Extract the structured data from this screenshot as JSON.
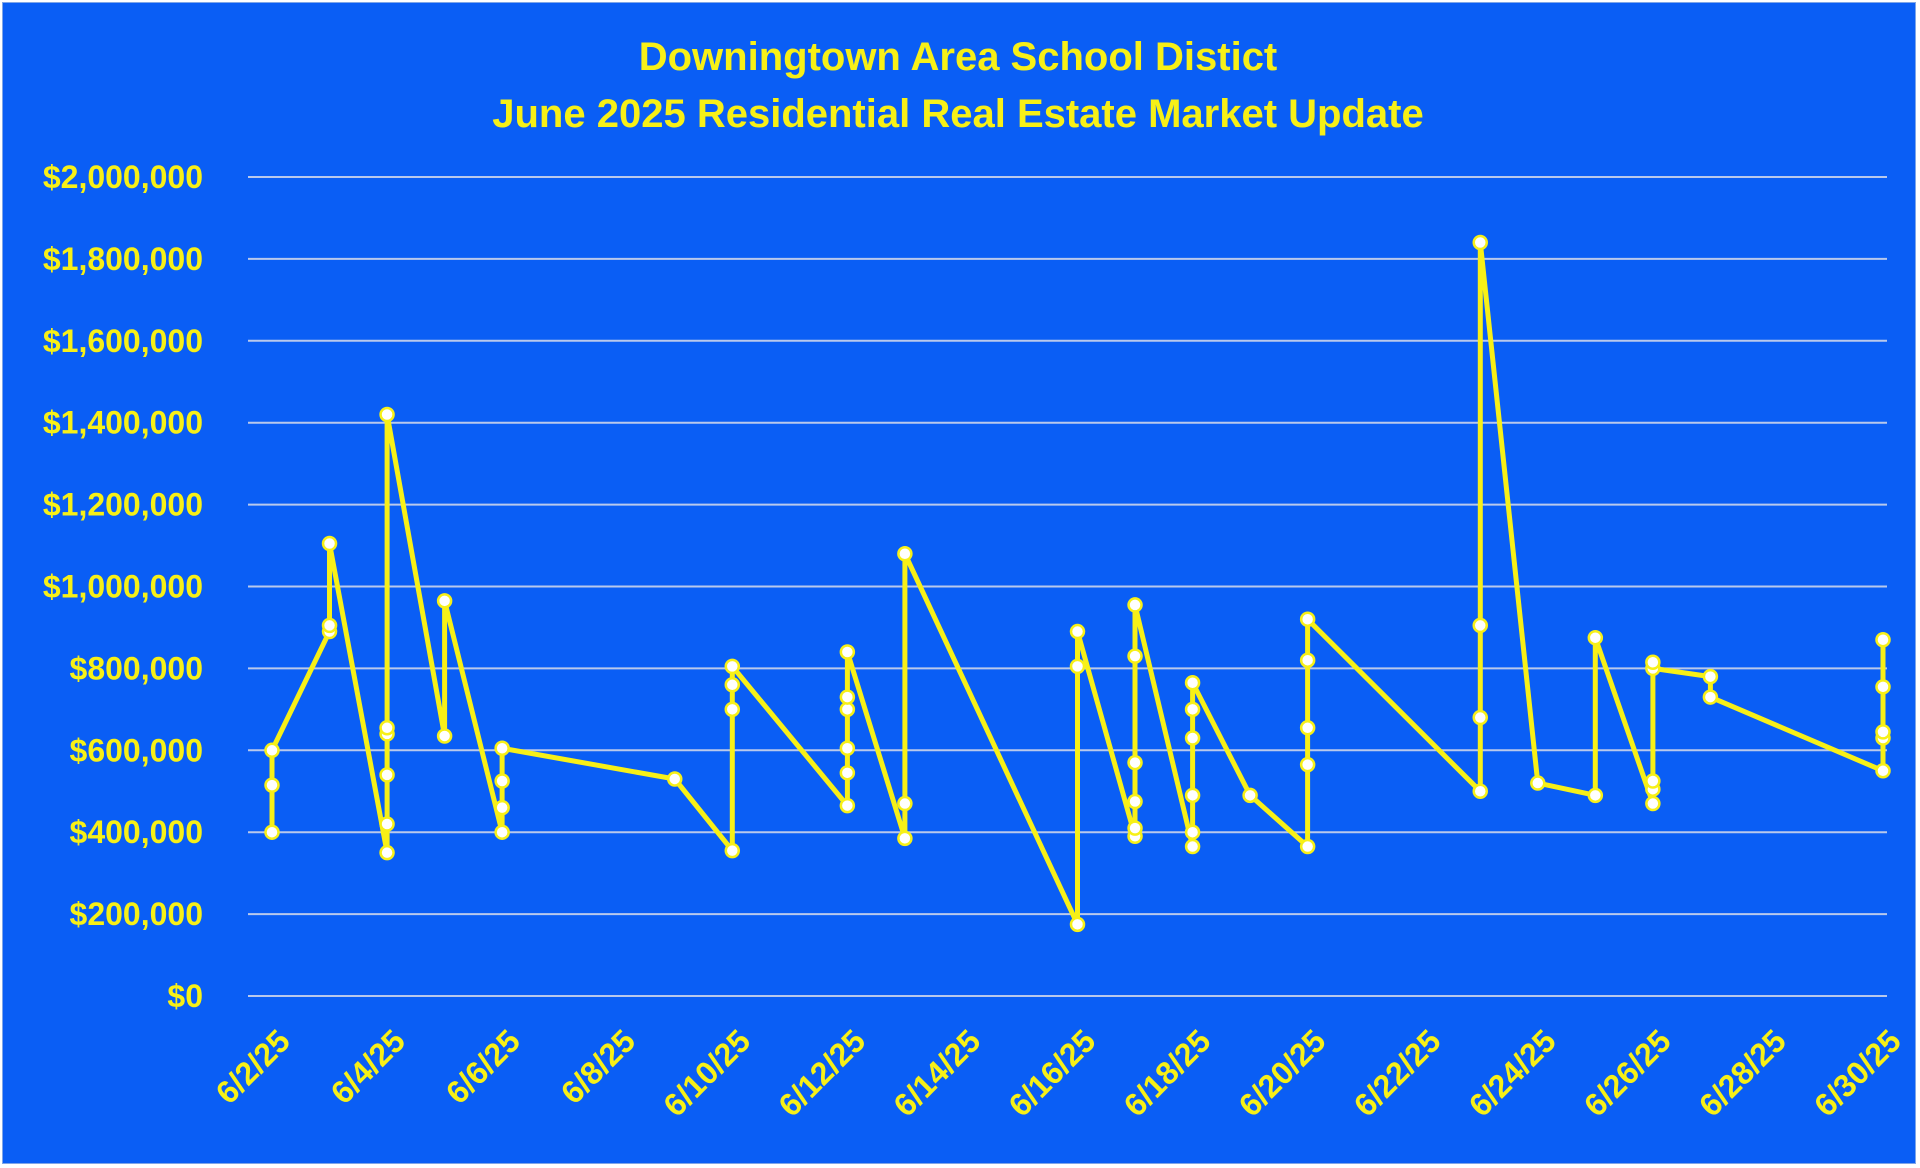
{
  "chart_data": {
    "type": "line",
    "title": "Downingtown Area School Distict",
    "subtitle": "June 2025 Residential Real Estate Market Update",
    "xlabel": "",
    "ylabel": "",
    "ylim": [
      0,
      2000000
    ],
    "yticks": [
      0,
      200000,
      400000,
      600000,
      800000,
      1000000,
      1200000,
      1400000,
      1600000,
      1800000,
      2000000
    ],
    "ytick_labels": [
      "$0",
      "$200,000",
      "$400,000",
      "$600,000",
      "$800,000",
      "$1,000,000",
      "$1,200,000",
      "$1,400,000",
      "$1,600,000",
      "$1,800,000",
      "$2,000,000"
    ],
    "xlim": [
      "2025-06-02",
      "2025-06-30"
    ],
    "xticks": [
      "2025-06-02",
      "2025-06-04",
      "2025-06-06",
      "2025-06-08",
      "2025-06-10",
      "2025-06-12",
      "2025-06-14",
      "2025-06-16",
      "2025-06-18",
      "2025-06-20",
      "2025-06-22",
      "2025-06-24",
      "2025-06-26",
      "2025-06-28",
      "2025-06-30"
    ],
    "xtick_labels": [
      "6/2/25",
      "6/4/25",
      "6/6/25",
      "6/8/25",
      "6/10/25",
      "6/12/25",
      "6/14/25",
      "6/16/25",
      "6/18/25",
      "6/20/25",
      "6/22/25",
      "6/24/25",
      "6/26/25",
      "6/28/25",
      "6/30/25"
    ],
    "grid": true,
    "legend": "none",
    "line_color": "#f7f017",
    "background_color": "#0a5ef5",
    "points": [
      {
        "x": "2025-06-02",
        "y": 400000
      },
      {
        "x": "2025-06-02",
        "y": 515000
      },
      {
        "x": "2025-06-02",
        "y": 600000
      },
      {
        "x": "2025-06-03",
        "y": 890000
      },
      {
        "x": "2025-06-03",
        "y": 905000
      },
      {
        "x": "2025-06-03",
        "y": 1105000
      },
      {
        "x": "2025-06-04",
        "y": 350000
      },
      {
        "x": "2025-06-04",
        "y": 420000
      },
      {
        "x": "2025-06-04",
        "y": 540000
      },
      {
        "x": "2025-06-04",
        "y": 640000
      },
      {
        "x": "2025-06-04",
        "y": 655000
      },
      {
        "x": "2025-06-04",
        "y": 1420000
      },
      {
        "x": "2025-06-05",
        "y": 635000
      },
      {
        "x": "2025-06-05",
        "y": 965000
      },
      {
        "x": "2025-06-06",
        "y": 400000
      },
      {
        "x": "2025-06-06",
        "y": 460000
      },
      {
        "x": "2025-06-06",
        "y": 525000
      },
      {
        "x": "2025-06-06",
        "y": 605000
      },
      {
        "x": "2025-06-09",
        "y": 530000
      },
      {
        "x": "2025-06-10",
        "y": 355000
      },
      {
        "x": "2025-06-10",
        "y": 700000
      },
      {
        "x": "2025-06-10",
        "y": 760000
      },
      {
        "x": "2025-06-10",
        "y": 805000
      },
      {
        "x": "2025-06-12",
        "y": 465000
      },
      {
        "x": "2025-06-12",
        "y": 545000
      },
      {
        "x": "2025-06-12",
        "y": 605000
      },
      {
        "x": "2025-06-12",
        "y": 700000
      },
      {
        "x": "2025-06-12",
        "y": 730000
      },
      {
        "x": "2025-06-12",
        "y": 840000
      },
      {
        "x": "2025-06-13",
        "y": 385000
      },
      {
        "x": "2025-06-13",
        "y": 470000
      },
      {
        "x": "2025-06-13",
        "y": 1080000
      },
      {
        "x": "2025-06-16",
        "y": 175000
      },
      {
        "x": "2025-06-16",
        "y": 805000
      },
      {
        "x": "2025-06-16",
        "y": 890000
      },
      {
        "x": "2025-06-17",
        "y": 390000
      },
      {
        "x": "2025-06-17",
        "y": 410000
      },
      {
        "x": "2025-06-17",
        "y": 475000
      },
      {
        "x": "2025-06-17",
        "y": 570000
      },
      {
        "x": "2025-06-17",
        "y": 830000
      },
      {
        "x": "2025-06-17",
        "y": 955000
      },
      {
        "x": "2025-06-18",
        "y": 365000
      },
      {
        "x": "2025-06-18",
        "y": 400000
      },
      {
        "x": "2025-06-18",
        "y": 490000
      },
      {
        "x": "2025-06-18",
        "y": 630000
      },
      {
        "x": "2025-06-18",
        "y": 700000
      },
      {
        "x": "2025-06-18",
        "y": 765000
      },
      {
        "x": "2025-06-19",
        "y": 490000
      },
      {
        "x": "2025-06-20",
        "y": 365000
      },
      {
        "x": "2025-06-20",
        "y": 565000
      },
      {
        "x": "2025-06-20",
        "y": 655000
      },
      {
        "x": "2025-06-20",
        "y": 820000
      },
      {
        "x": "2025-06-20",
        "y": 920000
      },
      {
        "x": "2025-06-23",
        "y": 500000
      },
      {
        "x": "2025-06-23",
        "y": 680000
      },
      {
        "x": "2025-06-23",
        "y": 905000
      },
      {
        "x": "2025-06-23",
        "y": 1840000
      },
      {
        "x": "2025-06-24",
        "y": 520000
      },
      {
        "x": "2025-06-25",
        "y": 490000
      },
      {
        "x": "2025-06-25",
        "y": 875000
      },
      {
        "x": "2025-06-26",
        "y": 470000
      },
      {
        "x": "2025-06-26",
        "y": 505000
      },
      {
        "x": "2025-06-26",
        "y": 525000
      },
      {
        "x": "2025-06-26",
        "y": 800000
      },
      {
        "x": "2025-06-26",
        "y": 815000
      },
      {
        "x": "2025-06-27",
        "y": 730000
      },
      {
        "x": "2025-06-27",
        "y": 780000
      },
      {
        "x": "2025-06-30",
        "y": 550000
      },
      {
        "x": "2025-06-30",
        "y": 630000
      },
      {
        "x": "2025-06-30",
        "y": 645000
      },
      {
        "x": "2025-06-30",
        "y": 755000
      },
      {
        "x": "2025-06-30",
        "y": 870000
      }
    ],
    "line_path": [
      {
        "x": "2025-06-02",
        "y": 400000
      },
      {
        "x": "2025-06-02",
        "y": 515000
      },
      {
        "x": "2025-06-02",
        "y": 600000
      },
      {
        "x": "2025-06-03",
        "y": 890000
      },
      {
        "x": "2025-06-03",
        "y": 905000
      },
      {
        "x": "2025-06-03",
        "y": 1105000
      },
      {
        "x": "2025-06-04",
        "y": 350000
      },
      {
        "x": "2025-06-04",
        "y": 1420000
      },
      {
        "x": "2025-06-05",
        "y": 635000
      },
      {
        "x": "2025-06-05",
        "y": 965000
      },
      {
        "x": "2025-06-06",
        "y": 400000
      },
      {
        "x": "2025-06-06",
        "y": 605000
      },
      {
        "x": "2025-06-09",
        "y": 530000
      },
      {
        "x": "2025-06-10",
        "y": 355000
      },
      {
        "x": "2025-06-10",
        "y": 805000
      },
      {
        "x": "2025-06-12",
        "y": 465000
      },
      {
        "x": "2025-06-12",
        "y": 840000
      },
      {
        "x": "2025-06-13",
        "y": 385000
      },
      {
        "x": "2025-06-13",
        "y": 1080000
      },
      {
        "x": "2025-06-16",
        "y": 175000
      },
      {
        "x": "2025-06-16",
        "y": 890000
      },
      {
        "x": "2025-06-17",
        "y": 390000
      },
      {
        "x": "2025-06-17",
        "y": 955000
      },
      {
        "x": "2025-06-18",
        "y": 365000
      },
      {
        "x": "2025-06-18",
        "y": 765000
      },
      {
        "x": "2025-06-19",
        "y": 490000
      },
      {
        "x": "2025-06-20",
        "y": 365000
      },
      {
        "x": "2025-06-20",
        "y": 920000
      },
      {
        "x": "2025-06-23",
        "y": 500000
      },
      {
        "x": "2025-06-23",
        "y": 1840000
      },
      {
        "x": "2025-06-24",
        "y": 520000
      },
      {
        "x": "2025-06-25",
        "y": 490000
      },
      {
        "x": "2025-06-25",
        "y": 875000
      },
      {
        "x": "2025-06-26",
        "y": 470000
      },
      {
        "x": "2025-06-26",
        "y": 800000
      },
      {
        "x": "2025-06-27",
        "y": 780000
      },
      {
        "x": "2025-06-27",
        "y": 730000
      },
      {
        "x": "2025-06-30",
        "y": 550000
      },
      {
        "x": "2025-06-30",
        "y": 870000
      }
    ]
  }
}
